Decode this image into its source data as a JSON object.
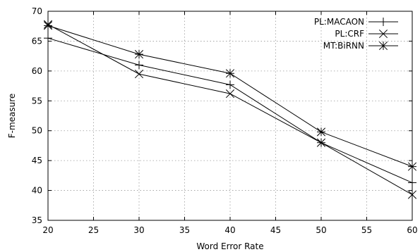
{
  "chart_data": {
    "type": "line",
    "xlabel": "Word Error Rate",
    "ylabel": "F-measure",
    "xlim": [
      20,
      60
    ],
    "ylim": [
      35,
      70
    ],
    "xticks": [
      20,
      25,
      30,
      35,
      40,
      45,
      50,
      55,
      60
    ],
    "yticks": [
      35,
      40,
      45,
      50,
      55,
      60,
      65,
      70
    ],
    "grid": true,
    "legend_position": "top-right",
    "x": [
      20,
      30,
      40,
      50,
      60
    ],
    "series": [
      {
        "name": "PL:MACAON",
        "marker": "plus",
        "values": [
          65.5,
          61.0,
          57.7,
          48.0,
          41.3
        ]
      },
      {
        "name": "PL:CRF",
        "marker": "cross",
        "values": [
          67.8,
          59.5,
          56.2,
          48.0,
          39.3
        ]
      },
      {
        "name": "MT:BiRNN",
        "marker": "star",
        "values": [
          67.6,
          62.8,
          59.6,
          49.8,
          44.0
        ]
      }
    ]
  }
}
